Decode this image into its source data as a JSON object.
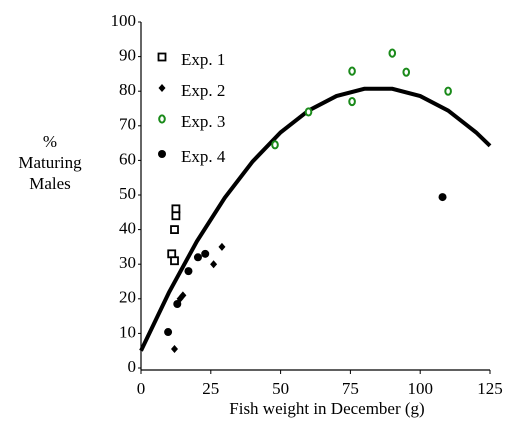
{
  "chart_data": {
    "type": "scatter",
    "xlabel": "Fish weight in December (g)",
    "ylabel_lines": [
      "%",
      "Maturing",
      "Males"
    ],
    "xlim": [
      0,
      125
    ],
    "xticks": [
      0,
      25,
      50,
      75,
      100,
      125
    ],
    "ylim": [
      0,
      100
    ],
    "yticks": [
      0,
      10,
      20,
      30,
      40,
      50,
      60,
      70,
      80,
      90,
      100
    ],
    "series": [
      {
        "name": "Exp. 1",
        "color": "#000000",
        "marker": "square-open",
        "x": [
          12.5,
          12.5,
          12,
          11,
          12
        ],
        "values": [
          46,
          44,
          40,
          33,
          31
        ]
      },
      {
        "name": "Exp. 2",
        "color": "#000000",
        "marker": "diamond",
        "x": [
          12,
          14,
          15,
          26,
          29
        ],
        "values": [
          5.5,
          20,
          21,
          30,
          35
        ]
      },
      {
        "name": "Exp. 3",
        "color": "#1a8a1a",
        "marker": "circle-open",
        "x": [
          48,
          60,
          75.6,
          75.6,
          90,
          95,
          110
        ],
        "values": [
          64.5,
          74,
          85.8,
          77,
          91,
          85.5,
          80
        ]
      },
      {
        "name": "Exp. 4",
        "color": "#000000",
        "marker": "circle",
        "x": [
          9.7,
          13,
          17,
          20.4,
          23,
          108
        ],
        "values": [
          10.4,
          18.5,
          28,
          32,
          33,
          49.4
        ]
      }
    ],
    "fit_line": {
      "color": "#000000",
      "x": [
        0,
        10,
        20,
        30,
        40,
        50,
        60,
        70,
        80,
        90,
        100,
        110,
        120,
        125
      ],
      "values": [
        5,
        21.8,
        36.6,
        49.2,
        59.7,
        68.1,
        74.4,
        78.6,
        80.7,
        80.7,
        78.6,
        74.4,
        68.1,
        64.2
      ]
    }
  }
}
